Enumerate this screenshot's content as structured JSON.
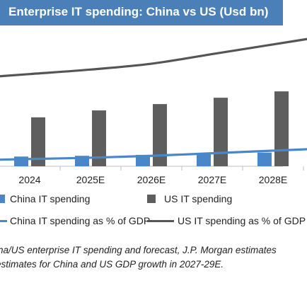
{
  "chart_data": {
    "type": "bar",
    "title": "Enterprise IT spending: China vs US (Usd bn)",
    "categories": [
      "2024",
      "2025E",
      "2026E",
      "2027E",
      "2028E"
    ],
    "series": [
      {
        "name": "China IT spending",
        "kind": "bar",
        "values": [
          520,
          560,
          610,
          680,
          730
        ],
        "color": "#4a87c8"
      },
      {
        "name": "US IT spending",
        "kind": "bar",
        "values": [
          2620,
          2990,
          3330,
          3670,
          4010
        ],
        "color": "#5e5e5e"
      },
      {
        "name": "China IT spending as % of GDP",
        "kind": "line",
        "values": [
          2.1,
          2.2,
          2.35,
          2.55,
          2.75
        ],
        "color": "#4a87c8"
      },
      {
        "name": "US IT spending as % of GDP",
        "kind": "line",
        "values": [
          8.7,
          9.05,
          9.5,
          10.25,
          11.0
        ],
        "color": "#555555"
      }
    ],
    "ylim": [
      0,
      5000
    ],
    "y2lim": [
      0,
      14
    ]
  },
  "legend": [
    "China IT spending",
    "US IT spending",
    "China IT spending as % of GDP",
    "US IT spending as % of GDP"
  ],
  "source_note": [
    "ina/US enterprise IT spending and forecast, J.P. Morgan estimates",
    "estimates for China and US GDP growth in 2027-29E."
  ]
}
